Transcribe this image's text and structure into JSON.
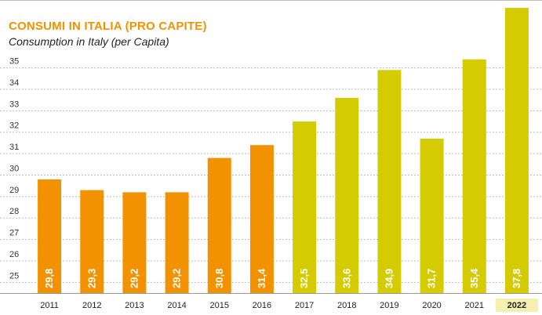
{
  "chart_data": {
    "type": "bar",
    "title": "CONSUMI IN ITALIA (PRO CAPITE)",
    "subtitle": "Consumption in Italy (per Capita)",
    "categories": [
      "2011",
      "2012",
      "2013",
      "2014",
      "2015",
      "2016",
      "2017",
      "2018",
      "2019",
      "2020",
      "2021",
      "2022"
    ],
    "values": [
      29.8,
      29.3,
      29.2,
      29.2,
      30.8,
      31.4,
      32.5,
      33.6,
      34.9,
      31.7,
      35.4,
      37.8
    ],
    "value_labels": [
      "29,8",
      "29,3",
      "29,2",
      "29,2",
      "30,8",
      "31,4",
      "32,5",
      "33,6",
      "34,9",
      "31,7",
      "35,4",
      "37,8"
    ],
    "y_ticks": [
      25,
      26,
      27,
      28,
      29,
      30,
      31,
      32,
      33,
      34,
      35
    ],
    "ylim": [
      24.5,
      37.8
    ],
    "xlabel": "",
    "ylabel": "",
    "grid": true,
    "highlighted_category": "2022",
    "colors": {
      "orange": "#f39200",
      "yellow": "#d4cc00",
      "grid": "#bdbdbd",
      "highlight_bg": "#f6f0b0",
      "label_text": "#ffffff"
    },
    "series_color_by_category": [
      "orange",
      "orange",
      "orange",
      "orange",
      "orange",
      "orange",
      "yellow",
      "yellow",
      "yellow",
      "yellow",
      "yellow",
      "yellow"
    ]
  }
}
